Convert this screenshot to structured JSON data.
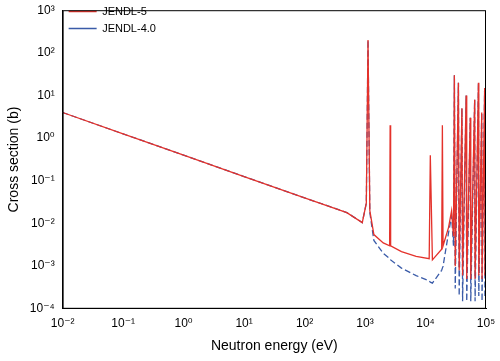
{
  "chart_data": {
    "type": "line",
    "x_label": "Neutron energy (eV)",
    "y_label": "Cross section (b)",
    "log": true,
    "grid": false,
    "legend": "upper left",
    "xlim": [
      0.01,
      100000
    ],
    "ylim": [
      0.0001,
      1000
    ],
    "xticks": [
      {
        "value": 0.01,
        "label": "10⁻²"
      },
      {
        "value": 0.1,
        "label": "10⁻¹"
      },
      {
        "value": 1,
        "label": "10⁰"
      },
      {
        "value": 10,
        "label": "10¹"
      },
      {
        "value": 100,
        "label": "10²"
      },
      {
        "value": 1000,
        "label": "10³"
      },
      {
        "value": 10000,
        "label": "10⁴"
      },
      {
        "value": 100000,
        "label": "10⁵"
      }
    ],
    "yticks": [
      {
        "value": 0.0001,
        "label": "10⁻⁴"
      },
      {
        "value": 0.001,
        "label": "10⁻³"
      },
      {
        "value": 0.01,
        "label": "10⁻²"
      },
      {
        "value": 0.1,
        "label": "10⁻¹"
      },
      {
        "value": 1,
        "label": "10⁰"
      },
      {
        "value": 10,
        "label": "10¹"
      },
      {
        "value": 100,
        "label": "10²"
      },
      {
        "value": 1000,
        "label": "10³"
      }
    ],
    "x": [
      0.01,
      0.1,
      1,
      10,
      100,
      500,
      900,
      1050,
      1120,
      1200,
      1400,
      2000,
      2550,
      2600,
      2650,
      4000,
      7000,
      11500,
      12000,
      13000,
      18500,
      19000,
      19500,
      24000,
      27000,
      29000,
      30000,
      31000,
      35000,
      36000,
      40000,
      41000,
      47000,
      48000,
      55000,
      56000,
      65000,
      66000,
      75000,
      76000,
      85000,
      86000,
      95000,
      96000,
      100000
    ],
    "series": [
      {
        "name": "JENDL-5",
        "color": "#e4322b",
        "line_style": "solid",
        "values": [
          4,
          1.26,
          0.4,
          0.126,
          0.04,
          0.018,
          0.0105,
          0.03,
          200,
          0.02,
          0.0055,
          0.0035,
          0.003,
          2,
          0.003,
          0.0022,
          0.0017,
          0.0015,
          0.4,
          0.0014,
          0.0025,
          2,
          0.003,
          0.008,
          0.02,
          0.005,
          30,
          0.001,
          20,
          0.0008,
          5,
          0.0006,
          10,
          0.0005,
          3,
          0.0005,
          8,
          0.0005,
          20,
          0.0006,
          4,
          0.0005,
          15,
          0.0006,
          0.0008
        ]
      },
      {
        "name": "JENDL-4.0",
        "color": "#3a5ba8",
        "line_style": "dashed",
        "values": [
          4,
          1.26,
          0.4,
          0.126,
          0.04,
          0.018,
          0.0105,
          0.03,
          200,
          0.018,
          0.004,
          0.002,
          0.0015,
          0.0015,
          0.0014,
          0.0009,
          0.0006,
          0.00045,
          0.00042,
          0.0004,
          0.0008,
          0.0009,
          0.001,
          0.006,
          0.015,
          0.003,
          30,
          0.0003,
          20,
          0.0002,
          5,
          0.00015,
          10,
          0.00015,
          3,
          0.00015,
          8,
          0.00015,
          20,
          0.0002,
          4,
          0.00015,
          15,
          0.0002,
          0.0003
        ]
      }
    ]
  }
}
